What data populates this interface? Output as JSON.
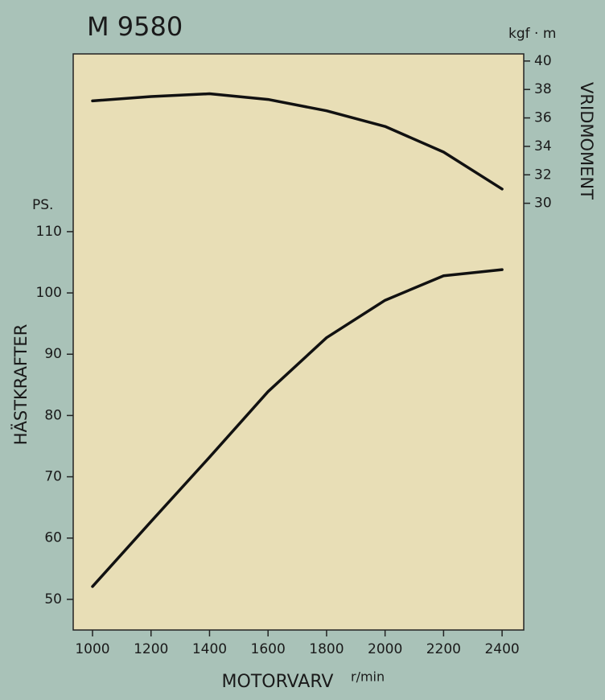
{
  "chart_data": {
    "type": "line",
    "title": "M 9580",
    "x_label": "MOTORVARV",
    "x_unit": "r/min",
    "y_label": "HÄSTKRAFTER",
    "y_unit": "PS.",
    "y2_label": "VRIDMOMENT",
    "y2_unit": "kgf · m",
    "x": [
      1000,
      1200,
      1400,
      1600,
      1800,
      2000,
      2200,
      2400
    ],
    "series": [
      {
        "color": "#111111",
        "values": [
          52.1,
          62.7,
          73.2,
          83.9,
          92.7,
          98.8,
          102.8,
          103.8
        ]
      },
      {
        "color": "#111111",
        "axis": "y2",
        "values": [
          37.2,
          37.5,
          37.7,
          37.3,
          36.5,
          35.4,
          33.6,
          31.0
        ]
      }
    ],
    "xlim": [
      934,
      2474
    ],
    "xticks": [
      1000,
      1200,
      1400,
      1600,
      1800,
      2000,
      2200,
      2400
    ],
    "ylim": [
      45,
      139
    ],
    "yticks": [
      50,
      60,
      70,
      80,
      90,
      100,
      110
    ],
    "y2lim": [
      0,
      40.5
    ],
    "y2ticks": [
      30,
      32,
      34,
      36,
      38,
      40
    ],
    "grid": false
  }
}
